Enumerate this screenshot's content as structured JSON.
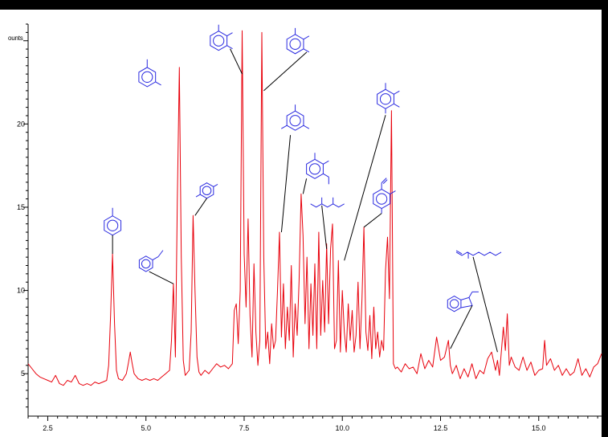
{
  "chart_data": {
    "type": "line",
    "ylabel": "ounts",
    "x_ticks": [
      "2.5",
      "5.0",
      "7.5",
      "10.0",
      "12.5",
      "15.0"
    ],
    "y_ticks": [
      "5",
      "10",
      "15",
      "20"
    ],
    "xlim": [
      2.0,
      16.6
    ],
    "ylim": [
      2.5,
      26.0
    ],
    "line_color": "#e8000b",
    "annotation_color": "#2a2ae0",
    "series": [
      {
        "x": [
          2.0,
          2.1,
          2.2,
          2.3,
          2.4,
          2.5,
          2.6,
          2.7,
          2.8,
          2.9,
          3.0,
          3.1,
          3.2,
          3.3,
          3.4,
          3.5,
          3.6,
          3.7,
          3.8,
          3.9,
          4.0,
          4.05,
          4.1,
          4.15,
          4.2,
          4.25,
          4.3,
          4.4,
          4.5,
          4.55,
          4.6,
          4.65,
          4.7,
          4.8,
          4.9,
          5.0,
          5.1,
          5.2,
          5.3,
          5.4,
          5.5,
          5.6,
          5.65,
          5.7,
          5.75,
          5.8,
          5.85,
          5.9,
          5.95,
          6.0,
          6.1,
          6.15,
          6.2,
          6.25,
          6.3,
          6.35,
          6.4,
          6.5,
          6.6,
          6.7,
          6.8,
          6.9,
          7.0,
          7.1,
          7.2,
          7.25,
          7.3,
          7.35,
          7.4,
          7.45,
          7.5,
          7.55,
          7.6,
          7.65,
          7.7,
          7.75,
          7.8,
          7.85,
          7.9,
          7.95,
          8.0,
          8.05,
          8.1,
          8.15,
          8.2,
          8.25,
          8.3,
          8.35,
          8.4,
          8.45,
          8.5,
          8.55,
          8.6,
          8.65,
          8.7,
          8.75,
          8.8,
          8.85,
          8.9,
          8.95,
          9.0,
          9.05,
          9.1,
          9.15,
          9.2,
          9.25,
          9.3,
          9.35,
          9.4,
          9.45,
          9.5,
          9.55,
          9.6,
          9.65,
          9.7,
          9.75,
          9.8,
          9.85,
          9.9,
          9.95,
          10.0,
          10.05,
          10.1,
          10.15,
          10.2,
          10.25,
          10.3,
          10.35,
          10.4,
          10.45,
          10.5,
          10.55,
          10.6,
          10.65,
          10.7,
          10.75,
          10.8,
          10.85,
          10.9,
          10.95,
          11.0,
          11.05,
          11.1,
          11.15,
          11.2,
          11.25,
          11.3,
          11.35,
          11.4,
          11.5,
          11.6,
          11.7,
          11.8,
          11.9,
          12.0,
          12.1,
          12.2,
          12.3,
          12.4,
          12.5,
          12.6,
          12.7,
          12.75,
          12.8,
          12.9,
          13.0,
          13.1,
          13.2,
          13.3,
          13.4,
          13.5,
          13.6,
          13.7,
          13.8,
          13.9,
          13.95,
          14.0,
          14.1,
          14.15,
          14.2,
          14.25,
          14.3,
          14.4,
          14.5,
          14.6,
          14.7,
          14.8,
          14.9,
          15.0,
          15.1,
          15.15,
          15.2,
          15.3,
          15.4,
          15.5,
          15.6,
          15.7,
          15.8,
          15.9,
          16.0,
          16.1,
          16.2,
          16.3,
          16.4,
          16.5,
          16.6
        ],
        "y": [
          5.6,
          5.3,
          5.0,
          4.8,
          4.7,
          4.6,
          4.5,
          4.9,
          4.4,
          4.3,
          4.6,
          4.5,
          4.9,
          4.4,
          4.3,
          4.4,
          4.3,
          4.5,
          4.4,
          4.5,
          4.6,
          5.5,
          8.5,
          12.2,
          8.0,
          5.2,
          4.7,
          4.6,
          5.0,
          5.6,
          6.3,
          5.6,
          5.0,
          4.7,
          4.6,
          4.7,
          4.6,
          4.7,
          4.6,
          4.8,
          5.0,
          5.2,
          7.0,
          10.4,
          6.0,
          15.5,
          23.4,
          12.0,
          5.8,
          4.9,
          5.2,
          7.5,
          14.5,
          10.0,
          6.0,
          5.1,
          4.9,
          5.2,
          5.0,
          5.3,
          5.6,
          5.4,
          5.5,
          5.3,
          5.6,
          8.8,
          9.2,
          6.8,
          10.0,
          25.6,
          12.2,
          9.0,
          14.3,
          8.5,
          6.0,
          11.6,
          7.5,
          5.5,
          7.0,
          25.5,
          12.0,
          6.5,
          7.5,
          5.6,
          8.0,
          6.5,
          7.0,
          10.0,
          13.5,
          7.2,
          10.4,
          6.5,
          9.0,
          7.0,
          11.5,
          6.0,
          9.2,
          7.3,
          10.6,
          15.8,
          13.3,
          8.0,
          12.0,
          6.5,
          10.4,
          7.3,
          11.6,
          6.5,
          13.5,
          7.3,
          10.6,
          7.5,
          12.8,
          8.0,
          12.5,
          14.0,
          6.5,
          7.0,
          11.8,
          6.3,
          10.0,
          7.5,
          6.3,
          9.2,
          7.0,
          8.8,
          6.3,
          7.3,
          10.5,
          6.5,
          9.5,
          13.8,
          7.5,
          6.4,
          8.5,
          5.9,
          9.0,
          6.5,
          7.5,
          6.0,
          7.0,
          6.4,
          11.2,
          13.2,
          9.5,
          20.8,
          5.6,
          5.3,
          5.4,
          5.1,
          5.6,
          5.3,
          5.4,
          5.0,
          6.2,
          5.3,
          5.8,
          5.4,
          7.2,
          5.8,
          6.0,
          7.0,
          5.5,
          5.0,
          5.5,
          4.7,
          5.3,
          4.8,
          5.6,
          4.7,
          5.2,
          5.0,
          5.9,
          6.3,
          5.2,
          5.8,
          4.9,
          7.8,
          6.4,
          8.6,
          5.5,
          6.0,
          5.4,
          5.2,
          6.0,
          5.2,
          5.7,
          4.9,
          5.2,
          5.3,
          7.0,
          5.5,
          5.9,
          5.2,
          5.5,
          4.9,
          5.3,
          4.9,
          5.1,
          5.9,
          4.9,
          5.3,
          4.8,
          5.4,
          5.6,
          6.2
        ]
      }
    ],
    "annotations": [
      {
        "label": "toluene",
        "x": 4.15,
        "y": 12.2,
        "lx": 4.15,
        "ly": 13.9,
        "structure": "toluene"
      },
      {
        "label": "ethylbenzene",
        "x": 5.7,
        "y": 10.4,
        "lx": 5.0,
        "ly": 11.6,
        "structure": "ethylbenzene"
      },
      {
        "label": "xylene",
        "x": 5.85,
        "y": 23.4,
        "lx": 5.85,
        "ly": 23.4,
        "structure": "xylene"
      },
      {
        "label": "dimethylbenzene",
        "x": 6.25,
        "y": 14.5,
        "lx": 6.55,
        "ly": 16.0,
        "structure": "para-xylene"
      },
      {
        "label": "trimethylbenzene",
        "x": 7.45,
        "y": 23.0,
        "lx": 6.85,
        "ly": 25.0,
        "structure": "trimethyl"
      },
      {
        "label": "trimethylbenzene-2",
        "x": 8.0,
        "y": 22.0,
        "lx": 8.8,
        "ly": 24.8,
        "structure": "trimethyl"
      },
      {
        "label": "mesitylene",
        "x": 8.45,
        "y": 13.5,
        "lx": 8.8,
        "ly": 20.2,
        "structure": "mesitylene"
      },
      {
        "label": "ethyl-dimethylbenzene",
        "x": 9.0,
        "y": 15.8,
        "lx": 9.3,
        "ly": 17.3,
        "structure": "ethyl-dimethyl"
      },
      {
        "label": "alkane-branched",
        "x": 9.6,
        "y": 12.5,
        "lx": 9.6,
        "ly": 15.2,
        "structure": "alkane"
      },
      {
        "label": "tetramethylbenzene",
        "x": 10.05,
        "y": 11.8,
        "lx": 11.1,
        "ly": 21.5,
        "structure": "tetramethyl"
      },
      {
        "label": "vinyl-dimethylbenzene",
        "x": 10.55,
        "y": 13.8,
        "lx": 11.0,
        "ly": 15.5,
        "structure": "vinyl-dimethyl"
      },
      {
        "label": "indene",
        "x": 12.75,
        "y": 6.5,
        "lx": 12.85,
        "ly": 9.2,
        "structure": "indene"
      },
      {
        "label": "long-alkene",
        "x": 13.95,
        "y": 6.3,
        "lx": 13.35,
        "ly": 12.3,
        "structure": "alkene"
      }
    ]
  }
}
